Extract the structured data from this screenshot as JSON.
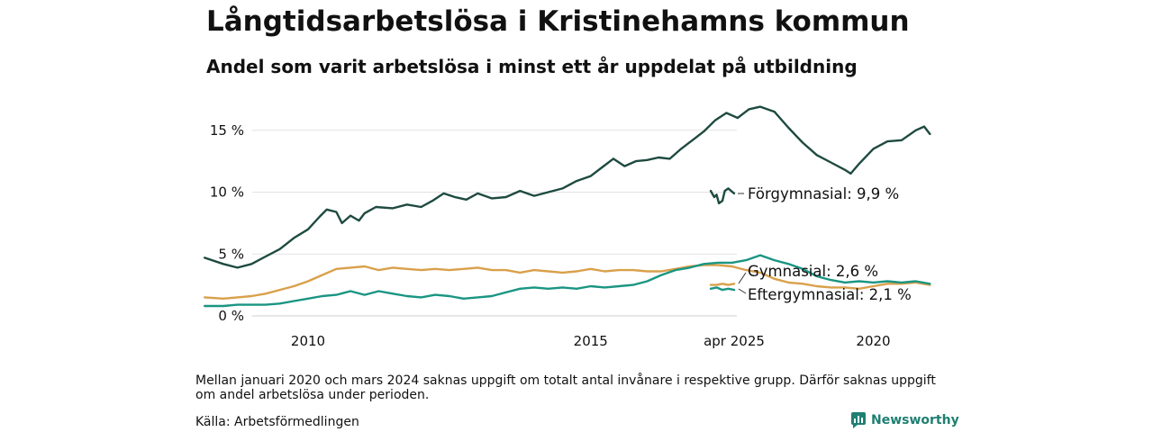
{
  "header": {
    "title": "Långtidsarbetslösa i Kristinehamns kommun",
    "subtitle": "Andel som varit arbetslösa i minst ett år uppdelat på utbildning"
  },
  "footer": {
    "note": "Mellan januari 2020 och mars 2024 saknas uppgift om totalt antal invånare i respektive grupp. Därför saknas uppgift om andel arbetslösa under perioden.",
    "source": "Källa: Arbetsförmedlingen",
    "brand": "Newsworthy",
    "brand_color": "#1f7f72"
  },
  "chart_data": {
    "type": "line",
    "title": "Långtidsarbetslösa i Kristinehamns kommun",
    "subtitle": "Andel som varit arbetslösa i minst ett år uppdelat på utbildning",
    "ylim": [
      0,
      17
    ],
    "y_ticks": [
      0,
      5,
      10,
      15
    ],
    "y_tick_labels": [
      "0 %",
      "5 %",
      "10 %",
      "15 %"
    ],
    "x_ticks": [
      2010,
      2015,
      2020,
      2025.25
    ],
    "x_tick_labels": [
      "2010",
      "2015",
      "2020",
      "apr 2025"
    ],
    "grid": "horizontal",
    "x_scale": "broken",
    "series": [
      {
        "name": "Förgymnasial",
        "end_label": "Förgymnasial: 9,9 %",
        "color": "#1e4a40",
        "segments": [
          [
            [
              2008.17,
              4.7
            ],
            [
              2008.5,
              4.2
            ],
            [
              2008.75,
              3.9
            ],
            [
              2009.0,
              4.2
            ],
            [
              2009.25,
              4.8
            ],
            [
              2009.5,
              5.4
            ],
            [
              2009.75,
              6.3
            ],
            [
              2010.0,
              7.0
            ],
            [
              2010.2,
              8.0
            ],
            [
              2010.33,
              8.6
            ],
            [
              2010.5,
              8.4
            ],
            [
              2010.6,
              7.5
            ],
            [
              2010.75,
              8.1
            ],
            [
              2010.9,
              7.7
            ],
            [
              2011.0,
              8.3
            ],
            [
              2011.2,
              8.8
            ],
            [
              2011.5,
              8.7
            ],
            [
              2011.75,
              9.0
            ],
            [
              2012.0,
              8.8
            ],
            [
              2012.2,
              9.3
            ],
            [
              2012.4,
              9.9
            ],
            [
              2012.6,
              9.6
            ],
            [
              2012.8,
              9.4
            ],
            [
              2013.0,
              9.9
            ],
            [
              2013.25,
              9.5
            ],
            [
              2013.5,
              9.6
            ],
            [
              2013.75,
              10.1
            ],
            [
              2014.0,
              9.7
            ],
            [
              2014.25,
              10.0
            ],
            [
              2014.5,
              10.3
            ],
            [
              2014.75,
              10.9
            ],
            [
              2015.0,
              11.3
            ],
            [
              2015.2,
              12.0
            ],
            [
              2015.4,
              12.7
            ],
            [
              2015.6,
              12.1
            ],
            [
              2015.8,
              12.5
            ],
            [
              2016.0,
              12.6
            ],
            [
              2016.2,
              12.8
            ],
            [
              2016.4,
              12.7
            ],
            [
              2016.6,
              13.5
            ],
            [
              2016.8,
              14.2
            ],
            [
              2017.0,
              14.9
            ],
            [
              2017.2,
              15.8
            ],
            [
              2017.4,
              16.4
            ],
            [
              2017.6,
              16.0
            ],
            [
              2017.8,
              16.7
            ],
            [
              2018.0,
              16.9
            ],
            [
              2018.25,
              16.5
            ],
            [
              2018.5,
              15.2
            ],
            [
              2018.75,
              14.0
            ],
            [
              2019.0,
              13.0
            ],
            [
              2019.25,
              12.4
            ],
            [
              2019.5,
              11.8
            ],
            [
              2019.6,
              11.5
            ],
            [
              2019.75,
              12.3
            ],
            [
              2020.0,
              13.5
            ],
            [
              2020.25,
              14.1
            ],
            [
              2020.5,
              14.2
            ],
            [
              2020.75,
              15.0
            ],
            [
              2020.9,
              15.3
            ],
            [
              2021.0,
              14.7
            ]
          ],
          [
            [
              2024.25,
              10.1
            ],
            [
              2024.4,
              9.6
            ],
            [
              2024.5,
              9.8
            ],
            [
              2024.6,
              9.1
            ],
            [
              2024.75,
              9.3
            ],
            [
              2024.85,
              10.1
            ],
            [
              2025.0,
              10.3
            ],
            [
              2025.25,
              9.9
            ]
          ]
        ]
      },
      {
        "name": "Gymnasial",
        "end_label": "Gymnasial: 2,6 %",
        "color": "#d9a04b",
        "segments": [
          [
            [
              2008.17,
              1.5
            ],
            [
              2008.5,
              1.4
            ],
            [
              2008.75,
              1.5
            ],
            [
              2009.0,
              1.6
            ],
            [
              2009.25,
              1.8
            ],
            [
              2009.5,
              2.1
            ],
            [
              2009.75,
              2.4
            ],
            [
              2010.0,
              2.8
            ],
            [
              2010.25,
              3.3
            ],
            [
              2010.5,
              3.8
            ],
            [
              2010.75,
              3.9
            ],
            [
              2011.0,
              4.0
            ],
            [
              2011.25,
              3.7
            ],
            [
              2011.5,
              3.9
            ],
            [
              2011.75,
              3.8
            ],
            [
              2012.0,
              3.7
            ],
            [
              2012.25,
              3.8
            ],
            [
              2012.5,
              3.7
            ],
            [
              2012.75,
              3.8
            ],
            [
              2013.0,
              3.9
            ],
            [
              2013.25,
              3.7
            ],
            [
              2013.5,
              3.7
            ],
            [
              2013.75,
              3.5
            ],
            [
              2014.0,
              3.7
            ],
            [
              2014.25,
              3.6
            ],
            [
              2014.5,
              3.5
            ],
            [
              2014.75,
              3.6
            ],
            [
              2015.0,
              3.8
            ],
            [
              2015.25,
              3.6
            ],
            [
              2015.5,
              3.7
            ],
            [
              2015.75,
              3.7
            ],
            [
              2016.0,
              3.6
            ],
            [
              2016.25,
              3.6
            ],
            [
              2016.5,
              3.8
            ],
            [
              2016.75,
              4.0
            ],
            [
              2017.0,
              4.1
            ],
            [
              2017.25,
              4.1
            ],
            [
              2017.5,
              4.0
            ],
            [
              2017.75,
              3.7
            ],
            [
              2018.0,
              3.5
            ],
            [
              2018.25,
              3.0
            ],
            [
              2018.5,
              2.7
            ],
            [
              2018.75,
              2.6
            ],
            [
              2019.0,
              2.4
            ],
            [
              2019.25,
              2.3
            ],
            [
              2019.5,
              2.3
            ],
            [
              2019.75,
              2.2
            ],
            [
              2020.0,
              2.4
            ],
            [
              2020.25,
              2.6
            ],
            [
              2020.5,
              2.6
            ],
            [
              2020.75,
              2.7
            ],
            [
              2021.0,
              2.5
            ]
          ],
          [
            [
              2024.25,
              2.5
            ],
            [
              2024.5,
              2.5
            ],
            [
              2024.75,
              2.6
            ],
            [
              2025.0,
              2.5
            ],
            [
              2025.25,
              2.6
            ]
          ]
        ]
      },
      {
        "name": "Eftergymnasial",
        "end_label": "Eftergymnasial: 2,1 %",
        "color": "#1a9582",
        "segments": [
          [
            [
              2008.17,
              0.8
            ],
            [
              2008.5,
              0.8
            ],
            [
              2008.75,
              0.9
            ],
            [
              2009.0,
              0.9
            ],
            [
              2009.25,
              0.9
            ],
            [
              2009.5,
              1.0
            ],
            [
              2009.75,
              1.2
            ],
            [
              2010.0,
              1.4
            ],
            [
              2010.25,
              1.6
            ],
            [
              2010.5,
              1.7
            ],
            [
              2010.75,
              2.0
            ],
            [
              2011.0,
              1.7
            ],
            [
              2011.25,
              2.0
            ],
            [
              2011.5,
              1.8
            ],
            [
              2011.75,
              1.6
            ],
            [
              2012.0,
              1.5
            ],
            [
              2012.25,
              1.7
            ],
            [
              2012.5,
              1.6
            ],
            [
              2012.75,
              1.4
            ],
            [
              2013.0,
              1.5
            ],
            [
              2013.25,
              1.6
            ],
            [
              2013.5,
              1.9
            ],
            [
              2013.75,
              2.2
            ],
            [
              2014.0,
              2.3
            ],
            [
              2014.25,
              2.2
            ],
            [
              2014.5,
              2.3
            ],
            [
              2014.75,
              2.2
            ],
            [
              2015.0,
              2.4
            ],
            [
              2015.25,
              2.3
            ],
            [
              2015.5,
              2.4
            ],
            [
              2015.75,
              2.5
            ],
            [
              2016.0,
              2.8
            ],
            [
              2016.25,
              3.3
            ],
            [
              2016.5,
              3.7
            ],
            [
              2016.75,
              3.9
            ],
            [
              2017.0,
              4.2
            ],
            [
              2017.25,
              4.3
            ],
            [
              2017.5,
              4.3
            ],
            [
              2017.75,
              4.5
            ],
            [
              2018.0,
              4.9
            ],
            [
              2018.25,
              4.5
            ],
            [
              2018.5,
              4.2
            ],
            [
              2018.75,
              3.8
            ],
            [
              2019.0,
              3.2
            ],
            [
              2019.25,
              2.9
            ],
            [
              2019.5,
              2.7
            ],
            [
              2019.75,
              2.8
            ],
            [
              2020.0,
              2.7
            ],
            [
              2020.25,
              2.8
            ],
            [
              2020.5,
              2.7
            ],
            [
              2020.75,
              2.8
            ],
            [
              2021.0,
              2.6
            ]
          ],
          [
            [
              2024.25,
              2.2
            ],
            [
              2024.5,
              2.3
            ],
            [
              2024.75,
              2.1
            ],
            [
              2025.0,
              2.2
            ],
            [
              2025.25,
              2.1
            ]
          ]
        ]
      }
    ]
  }
}
